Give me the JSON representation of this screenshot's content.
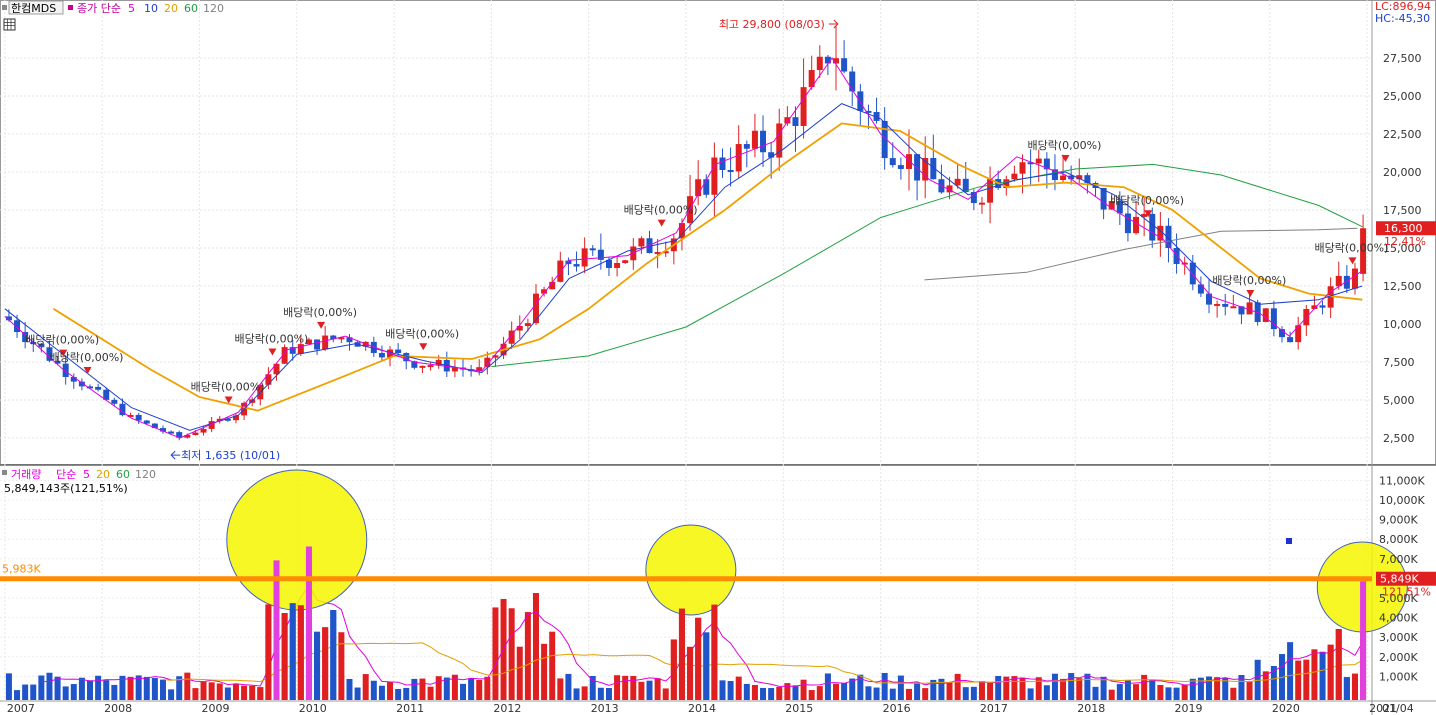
{
  "price_panel": {
    "title": "한컴MDS",
    "ma_label": "종가 단순",
    "ma_periods": [
      "5",
      "10",
      "20",
      "60",
      "120"
    ],
    "ma_colors": [
      "#e000e0",
      "#2040d0",
      "#e0a000",
      "#20a040",
      "#808080"
    ],
    "lc": "LC:896,94",
    "hc": "HC:-45,30",
    "last_price": "16,300",
    "last_change": "12,41%",
    "high_annot": "최고 29,800 (08/03)",
    "low_annot": "최저 1,635 (10/01)",
    "dividend_label": "배당락(0,00%)"
  },
  "volume_panel": {
    "title": "거래량",
    "ma_label": "단순",
    "ma_periods": [
      "5",
      "20",
      "60",
      "120"
    ],
    "info": "5,849,143주(121,51%)",
    "ref_left": "5,983K",
    "ref_right": "5,849K",
    "ref_pct": "121,51%"
  },
  "x_labels": [
    "2007",
    "2008",
    "2009",
    "2010",
    "2011",
    "2012",
    "2013",
    "2014",
    "2015",
    "2016",
    "2017",
    "2018",
    "2019",
    "2020",
    "2021",
    "01/04"
  ],
  "chart_data": [
    {
      "type": "candlestick",
      "title": "한컴MDS",
      "y_ticks": [
        2500,
        5000,
        7500,
        10000,
        12500,
        15000,
        17500,
        20000,
        22500,
        25000,
        27500
      ],
      "y_tick_labels": [
        "2,500",
        "5,000",
        "7,500",
        "10,000",
        "12,500",
        "15,000",
        "17,500",
        "20,000",
        "22,500",
        "25,000",
        "27,500"
      ],
      "ylim": [
        0,
        30500
      ],
      "x_range": [
        2006.95,
        2021.05
      ],
      "annotations": [
        {
          "text": "최고 29,800 (08/03)",
          "x": 2015.55,
          "y": 29800
        },
        {
          "text": "최저 1,635 (10/01)",
          "x": 2008.75,
          "y": 1635
        }
      ],
      "dividend_marks": [
        2007.6,
        2007.85,
        2009.3,
        2009.75,
        2010.25,
        2011.3,
        2013.75,
        2017.9,
        2018.75,
        2019.8,
        2020.85
      ],
      "ma120": [
        [
          2016.45,
          12900
        ],
        [
          2017.5,
          13400
        ],
        [
          2018.5,
          14900
        ],
        [
          2019.5,
          16100
        ],
        [
          2020.5,
          16200
        ],
        [
          2020.9,
          16300
        ]
      ],
      "ma60": [
        [
          2012.0,
          7200
        ],
        [
          2013.0,
          7900
        ],
        [
          2014.0,
          9800
        ],
        [
          2015.0,
          13300
        ],
        [
          2016.0,
          17000
        ],
        [
          2017.0,
          19000
        ],
        [
          2018.0,
          20200
        ],
        [
          2018.8,
          20500
        ],
        [
          2019.5,
          19800
        ],
        [
          2020.5,
          17800
        ],
        [
          2020.95,
          16400
        ]
      ],
      "ma20": [
        [
          2007.5,
          11000
        ],
        [
          2008.5,
          7000
        ],
        [
          2009.0,
          5200
        ],
        [
          2009.6,
          4300
        ],
        [
          2010.5,
          6600
        ],
        [
          2011.0,
          7900
        ],
        [
          2011.8,
          7700
        ],
        [
          2012.5,
          9000
        ],
        [
          2013.0,
          11000
        ],
        [
          2013.6,
          14000
        ],
        [
          2014.4,
          17500
        ],
        [
          2015.0,
          20500
        ],
        [
          2015.6,
          23200
        ],
        [
          2016.2,
          22700
        ],
        [
          2016.8,
          20500
        ],
        [
          2017.3,
          19000
        ],
        [
          2017.9,
          19300
        ],
        [
          2018.5,
          19000
        ],
        [
          2019.0,
          17500
        ],
        [
          2019.5,
          15000
        ],
        [
          2019.9,
          13000
        ],
        [
          2020.4,
          12000
        ],
        [
          2020.95,
          11600
        ]
      ],
      "ma10": [
        [
          2007.0,
          11000
        ],
        [
          2007.6,
          8000
        ],
        [
          2008.3,
          4500
        ],
        [
          2008.9,
          3000
        ],
        [
          2009.4,
          4000
        ],
        [
          2010.0,
          8000
        ],
        [
          2010.6,
          8700
        ],
        [
          2011.3,
          7600
        ],
        [
          2011.9,
          6800
        ],
        [
          2012.3,
          9000
        ],
        [
          2012.8,
          13000
        ],
        [
          2013.4,
          14800
        ],
        [
          2013.9,
          15500
        ],
        [
          2014.4,
          19000
        ],
        [
          2015.0,
          21500
        ],
        [
          2015.6,
          24500
        ],
        [
          2016.0,
          23500
        ],
        [
          2016.4,
          21000
        ],
        [
          2016.9,
          18500
        ],
        [
          2017.4,
          19500
        ],
        [
          2017.9,
          20000
        ],
        [
          2018.4,
          18500
        ],
        [
          2018.9,
          16000
        ],
        [
          2019.4,
          12800
        ],
        [
          2019.9,
          11300
        ],
        [
          2020.5,
          11600
        ],
        [
          2020.95,
          12500
        ]
      ],
      "ma5": [
        [
          2007.0,
          10500
        ],
        [
          2007.6,
          7000
        ],
        [
          2008.3,
          3800
        ],
        [
          2008.8,
          2500
        ],
        [
          2009.4,
          4200
        ],
        [
          2009.9,
          8300
        ],
        [
          2010.5,
          9200
        ],
        [
          2011.2,
          7500
        ],
        [
          2011.9,
          6900
        ],
        [
          2012.3,
          10000
        ],
        [
          2012.8,
          14200
        ],
        [
          2013.4,
          14500
        ],
        [
          2013.9,
          16000
        ],
        [
          2014.3,
          20500
        ],
        [
          2014.9,
          22000
        ],
        [
          2015.5,
          27500
        ],
        [
          2016.0,
          22500
        ],
        [
          2016.5,
          19500
        ],
        [
          2016.9,
          18200
        ],
        [
          2017.4,
          21000
        ],
        [
          2017.9,
          19800
        ],
        [
          2018.4,
          17500
        ],
        [
          2018.9,
          15600
        ],
        [
          2019.4,
          11800
        ],
        [
          2019.9,
          10700
        ],
        [
          2020.2,
          9200
        ],
        [
          2020.6,
          12000
        ],
        [
          2020.95,
          13500
        ]
      ]
    },
    {
      "type": "bar",
      "title": "거래량",
      "unit": "K",
      "y_ticks": [
        1000,
        2000,
        3000,
        4000,
        5000,
        6000,
        7000,
        8000,
        9000,
        10000,
        11000
      ],
      "y_tick_labels": [
        "1,000K",
        "2,000K",
        "3,000K",
        "4,000K",
        "5,000K",
        "6,000K",
        "7,000K",
        "8,000K",
        "9,000K",
        "10,000K",
        "11,000K"
      ],
      "ylim": [
        0,
        11500
      ],
      "reference_line": 5983,
      "last_volume": 5849
    }
  ]
}
